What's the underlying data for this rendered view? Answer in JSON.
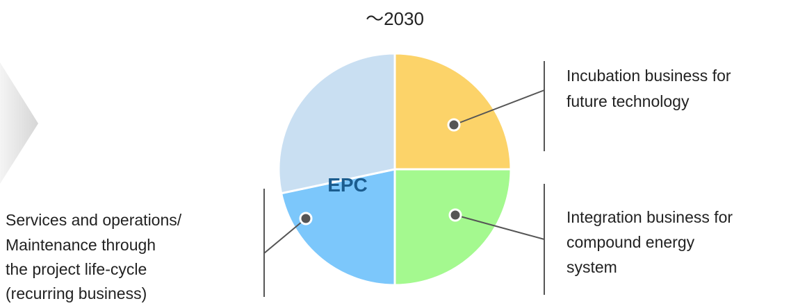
{
  "title": "～2030",
  "center_label": "EPC",
  "callouts": [
    {
      "lines": [
        "Incubation business for",
        "future technology"
      ]
    },
    {
      "lines": [
        "Integration business for",
        "compound energy",
        "system"
      ]
    },
    {
      "lines": [
        "Services and operations/",
        "Maintenance through",
        "the project life-cycle",
        "(recurring business)"
      ]
    }
  ]
}
